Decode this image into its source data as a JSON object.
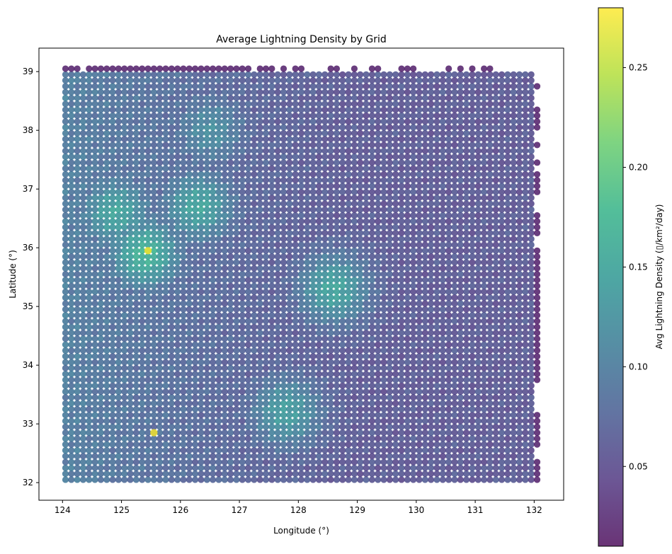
{
  "chart_data": {
    "type": "scatter",
    "title": "Average Lightning Density by Grid",
    "xlabel": "Longitude (°)",
    "ylabel": "Latitude (°)",
    "xlim": [
      123.6,
      132.5
    ],
    "ylim": [
      31.7,
      39.4
    ],
    "xticks": [
      "124",
      "125",
      "126",
      "127",
      "128",
      "129",
      "130",
      "131",
      "132"
    ],
    "yticks": [
      "32",
      "33",
      "34",
      "35",
      "36",
      "37",
      "38",
      "39"
    ],
    "grid": false,
    "colormap": "viridis",
    "marker_alpha": 0.8,
    "grid_spacing_deg": 0.1,
    "lon_range": [
      124.05,
      132.05
    ],
    "lat_range": [
      32.05,
      38.95
    ],
    "colorbar": {
      "label": "Avg Lightning Density (▯/km²/day)",
      "range": [
        0.01,
        0.28
      ],
      "ticks": [
        "0.05",
        "0.10",
        "0.15",
        "0.20",
        "0.25"
      ]
    },
    "hotspots": [
      {
        "lon": 125.45,
        "lat": 35.95,
        "value": 0.28
      },
      {
        "lon": 125.55,
        "lat": 32.85,
        "value": 0.28
      }
    ],
    "elevated_regions": [
      {
        "lon": 124.9,
        "lat": 36.6,
        "value": 0.15
      },
      {
        "lon": 125.4,
        "lat": 35.9,
        "value": 0.17
      },
      {
        "lon": 126.3,
        "lat": 36.7,
        "value": 0.15
      },
      {
        "lon": 128.6,
        "lat": 35.3,
        "value": 0.15
      },
      {
        "lon": 127.8,
        "lat": 33.2,
        "value": 0.14
      },
      {
        "lon": 126.5,
        "lat": 38.0,
        "value": 0.12
      }
    ],
    "background_levels": {
      "west": 0.1,
      "east": 0.04
    },
    "top_row": {
      "lat": 39.05,
      "lons": [
        124.05,
        124.15,
        124.25,
        124.45,
        124.55,
        124.65,
        124.75,
        124.85,
        124.95,
        125.05,
        125.15,
        125.25,
        125.35,
        125.45,
        125.55,
        125.65,
        125.75,
        125.85,
        125.95,
        126.05,
        126.15,
        126.25,
        126.35,
        126.45,
        126.55,
        126.65,
        126.75,
        126.85,
        126.95,
        127.05,
        127.15,
        127.35,
        127.45,
        127.55,
        127.75,
        127.95,
        128.05,
        128.55,
        128.65,
        128.95,
        129.25,
        129.35,
        129.75,
        129.85,
        129.95,
        130.55,
        130.75,
        130.95,
        131.15,
        131.25
      ],
      "value": 0.02
    },
    "east_edge": {
      "lon": 132.05,
      "lats": [
        38.75,
        38.35,
        38.25,
        38.15,
        38.05,
        37.75,
        37.45,
        37.25,
        37.15,
        37.05,
        36.95,
        36.55,
        36.45,
        36.35,
        36.25,
        35.95,
        35.85,
        35.75,
        35.65,
        35.55,
        35.45,
        35.35,
        35.25,
        35.15,
        35.05,
        34.95,
        34.85,
        34.75,
        34.65,
        34.55,
        34.45,
        34.35,
        34.25,
        34.15,
        34.05,
        33.95,
        33.85,
        33.75,
        33.15,
        33.05,
        32.95,
        32.85,
        32.75,
        32.65,
        32.35,
        32.25,
        32.15,
        32.05
      ],
      "value": 0.02
    }
  }
}
